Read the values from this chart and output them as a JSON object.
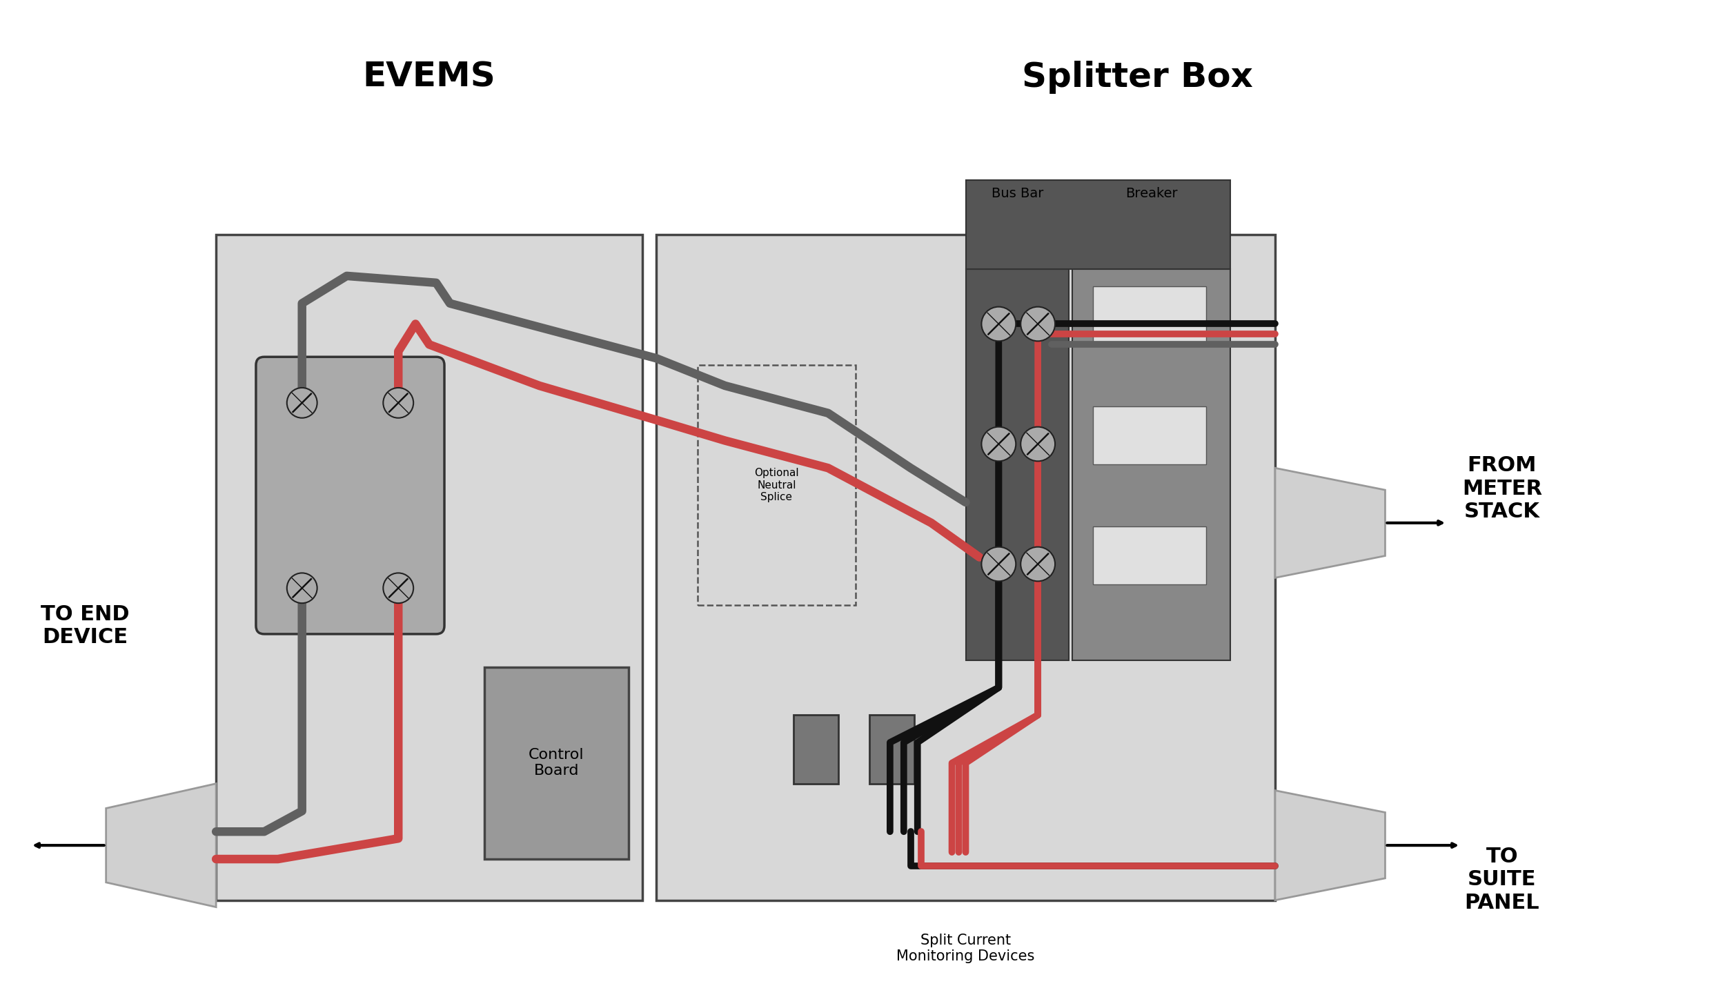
{
  "bg_color": "#ffffff",
  "box_fill": "#d8d8d8",
  "box_edge": "#444444",
  "module_fill": "#aaaaaa",
  "module_edge": "#333333",
  "busbar_fill": "#555555",
  "breaker_fill": "#888888",
  "breaker_top_fill": "#555555",
  "breaker_window_fill": "#e0e0e0",
  "control_board_fill": "#999999",
  "conduit_fill": "#d0d0d0",
  "conduit_edge": "#999999",
  "screw_fill": "#aaaaaa",
  "monitor_fill": "#777777",
  "wire_gray": "#606060",
  "wire_red": "#cc4444",
  "wire_black": "#111111",
  "evems_label": "EVEMS",
  "splitter_label": "Splitter Box",
  "busbar_label": "Bus Bar",
  "breaker_label": "Breaker",
  "optional_label": "Optional\nNeutral\nSplice",
  "split_current_label": "Split Current\nMonitoring Devices",
  "to_end_label": "TO END\nDEVICE",
  "from_meter_label": "FROM\nMETER\nSTACK",
  "to_suite_label": "TO\nSUITE\nPANEL",
  "control_board_label": "Control\nBoard"
}
